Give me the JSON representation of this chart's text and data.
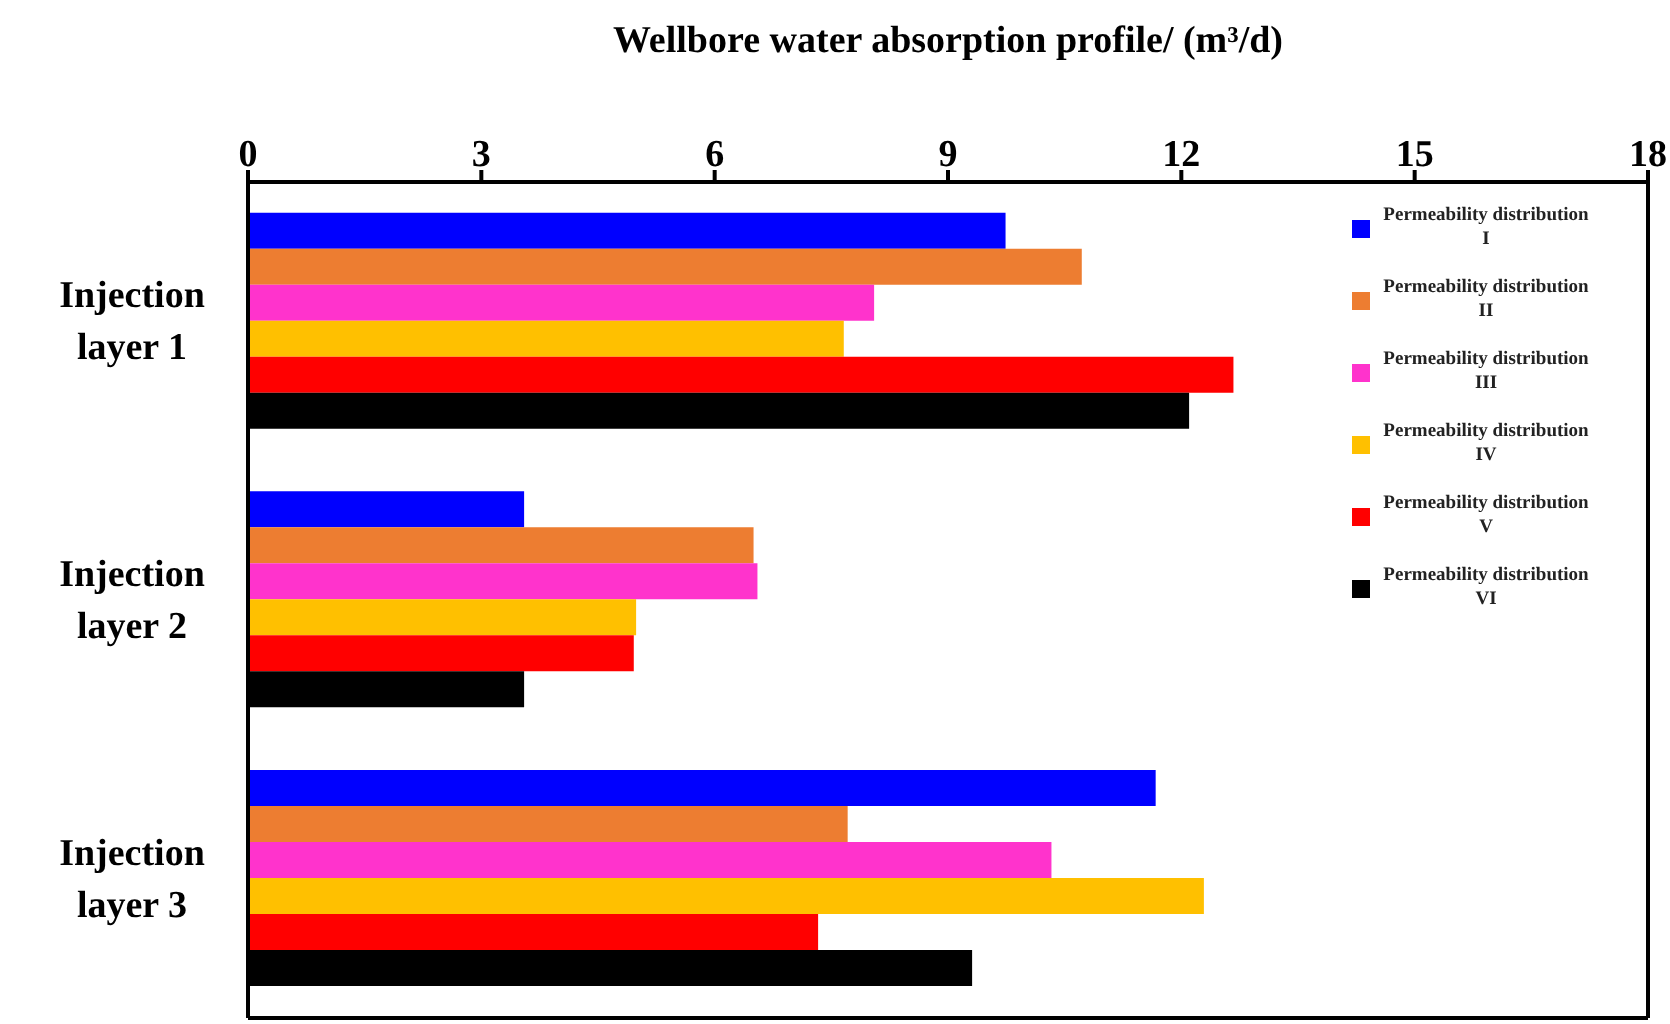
{
  "chart_data": {
    "type": "bar",
    "orientation": "horizontal",
    "xlabel": "Wellbore water absorption profile/ (m³/d)",
    "categories": [
      "Injection layer 1",
      "Injection layer 2",
      "Injection layer 3"
    ],
    "series": [
      {
        "name": "Permeability distribution I",
        "color": "#0000ff",
        "values": [
          9.74,
          3.55,
          11.67
        ]
      },
      {
        "name": "Permeability distribution II",
        "color": "#ed7d31",
        "values": [
          10.72,
          6.5,
          7.71
        ]
      },
      {
        "name": "Permeability distribution III",
        "color": "#ff33cc",
        "values": [
          8.05,
          6.55,
          10.33
        ]
      },
      {
        "name": "Permeability distribution IV",
        "color": "#ffc000",
        "values": [
          7.66,
          4.99,
          12.29
        ]
      },
      {
        "name": "Permeability distribution V",
        "color": "#ff0000",
        "values": [
          12.67,
          4.96,
          7.33
        ]
      },
      {
        "name": "Permeability distribution VI",
        "color": "#000000",
        "values": [
          12.1,
          3.55,
          9.31
        ]
      }
    ],
    "xlim": [
      0,
      18
    ],
    "xticks": [
      0,
      3,
      6,
      9,
      12,
      15,
      18
    ],
    "grid": false,
    "legend": "top right"
  }
}
